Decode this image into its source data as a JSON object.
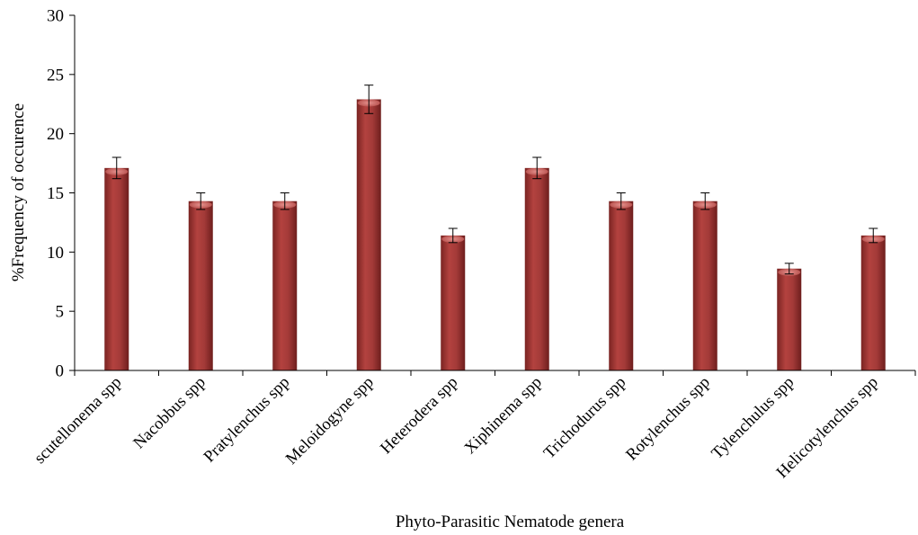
{
  "chart_data": {
    "type": "bar",
    "title": "",
    "xlabel": "Phyto-Parasitic Nematode genera",
    "ylabel": "%Frequency of occurence",
    "ylim": [
      0,
      30
    ],
    "yticks": [
      0,
      5,
      10,
      15,
      20,
      25,
      30
    ],
    "categories": [
      "scutellonema spp",
      "Nacobbus spp",
      "Pratylenchus spp",
      "Meloidogyne spp",
      "Heterodera spp",
      "Xiphinema spp",
      "Trichodurus spp",
      "Rotylenchus spp",
      "Tylenchulus spp",
      "Helicotylenchus spp"
    ],
    "values": [
      17.1,
      14.3,
      14.3,
      22.9,
      11.4,
      17.1,
      14.3,
      14.3,
      8.6,
      11.4
    ],
    "errors": [
      0.9,
      0.7,
      0.7,
      1.2,
      0.6,
      0.9,
      0.7,
      0.7,
      0.45,
      0.6
    ],
    "grid": false,
    "legend": "none",
    "colors": {
      "bar": "#a33a38",
      "bar_dark": "#6e1e1d",
      "bar_light": "#d97c78",
      "axis": "#000000"
    }
  }
}
